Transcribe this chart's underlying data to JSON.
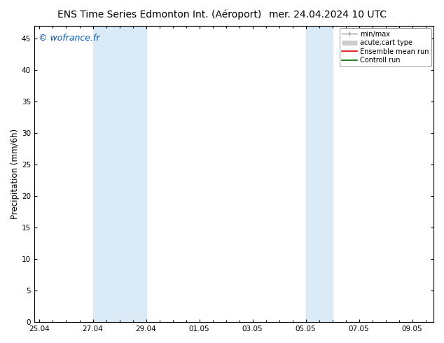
{
  "title_left": "ENS Time Series Edmonton Int. (Aéroport)",
  "title_right": "mer. 24.04.2024 10 UTC",
  "ylabel": "Precipitation (mm/6h)",
  "watermark": "© wofrance.fr",
  "ylim": [
    0,
    47
  ],
  "yticks": [
    0,
    5,
    10,
    15,
    20,
    25,
    30,
    35,
    40,
    45
  ],
  "xtick_labels": [
    "25.04",
    "27.04",
    "29.04",
    "01.05",
    "03.05",
    "05.05",
    "07.05",
    "09.05"
  ],
  "xtick_positions": [
    0,
    2,
    4,
    6,
    8,
    10,
    12,
    14
  ],
  "xlim": [
    -0.2,
    14.8
  ],
  "shaded_bands": [
    {
      "x_start": 2,
      "x_end": 4
    },
    {
      "x_start": 10,
      "x_end": 11.0
    }
  ],
  "shaded_color": "#daeaf7",
  "background_color": "#ffffff",
  "watermark_color": "#0055bb",
  "title_fontsize": 10,
  "tick_fontsize": 7.5,
  "ylabel_fontsize": 8.5,
  "watermark_fontsize": 9,
  "legend_fontsize": 7
}
